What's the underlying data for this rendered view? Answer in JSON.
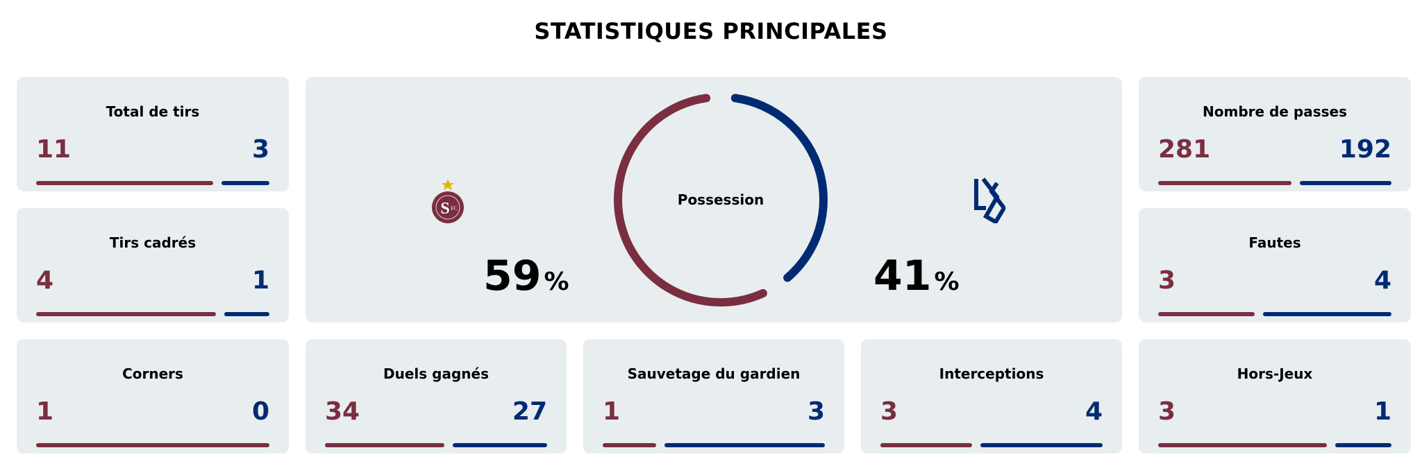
{
  "title": "STATISTIQUES PRINCIPALES",
  "colors": {
    "home": "#7a2e40",
    "away": "#002b73",
    "card": "#e8edf0"
  },
  "possession": {
    "label": "Possession",
    "home": 59,
    "away": 41,
    "home_text": "59",
    "away_text": "41",
    "unit": "%",
    "home_logo": "servette-fc-logo",
    "away_logo": "lausanne-sport-logo"
  },
  "stats": [
    {
      "label": "Total de tirs",
      "home": 11,
      "away": 3
    },
    {
      "label": "Tirs cadrés",
      "home": 4,
      "away": 1
    },
    {
      "label": "Corners",
      "home": 1,
      "away": 0
    },
    {
      "label": "Nombre de passes",
      "home": 281,
      "away": 192
    },
    {
      "label": "Fautes",
      "home": 3,
      "away": 4
    },
    {
      "label": "Duels gagnés",
      "home": 34,
      "away": 27
    },
    {
      "label": "Sauvetage du gardien",
      "home": 1,
      "away": 3
    },
    {
      "label": "Interceptions",
      "home": 3,
      "away": 4
    },
    {
      "label": "Hors-Jeux",
      "home": 3,
      "away": 1
    }
  ]
}
